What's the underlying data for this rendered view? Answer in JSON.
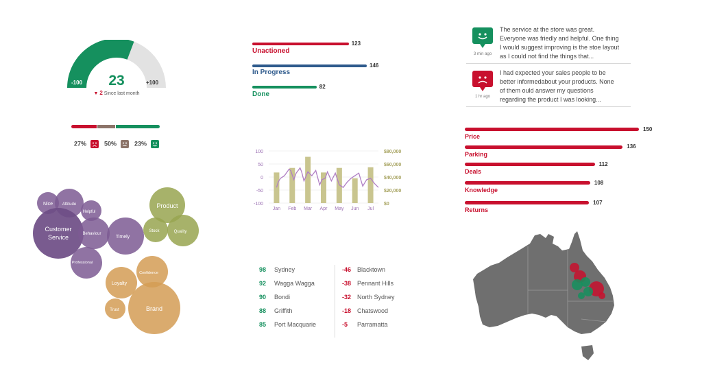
{
  "gauge": {
    "score": "23",
    "min_label": "-100",
    "max_label": "+100",
    "change_value": "2",
    "change_text": "Since last month",
    "value": 23,
    "range": [
      -100,
      100
    ]
  },
  "sentiment": {
    "items": [
      {
        "pct": "27%",
        "kind": "negative",
        "share": 27
      },
      {
        "pct": "50%",
        "kind": "neutral",
        "share": 50
      },
      {
        "pct": "23%",
        "kind": "positive",
        "share": 23
      }
    ]
  },
  "status": {
    "items": [
      {
        "label": "Unactioned",
        "value": "123",
        "count": 123,
        "color": "#c8102e"
      },
      {
        "label": "In Progress",
        "value": "146",
        "count": 146,
        "color": "#2e5a8c"
      },
      {
        "label": "Done",
        "value": "82",
        "count": 82,
        "color": "#15905e"
      }
    ]
  },
  "comments": [
    {
      "sentiment": "positive",
      "time": "3 min ago",
      "text": "The service at the store was great. Everyone was friedly and helpful. One thing I would suggest improving is the stoe layout as I could not find the things that..."
    },
    {
      "sentiment": "negative",
      "time": "1 hr ago",
      "text": "I had expected your sales people to be better informedabout your products. None of them ould answer my questions regarding the product I was looking..."
    }
  ],
  "topics": {
    "items": [
      {
        "label": "Price",
        "value": "150",
        "count": 150
      },
      {
        "label": "Parking",
        "value": "136",
        "count": 136
      },
      {
        "label": "Deals",
        "value": "112",
        "count": 112
      },
      {
        "label": "Knowledge",
        "value": "108",
        "count": 108
      },
      {
        "label": "Returns",
        "value": "107",
        "count": 107
      }
    ]
  },
  "locations": {
    "top": [
      {
        "score": "98",
        "name": "Sydney"
      },
      {
        "score": "92",
        "name": "Wagga Wagga"
      },
      {
        "score": "90",
        "name": "Bondi"
      },
      {
        "score": "88",
        "name": "Griffith"
      },
      {
        "score": "85",
        "name": "Port Macquarie"
      }
    ],
    "bottom": [
      {
        "score": "-46",
        "name": "Blacktown"
      },
      {
        "score": "-38",
        "name": "Pennant Hills"
      },
      {
        "score": "-32",
        "name": "North Sydney"
      },
      {
        "score": "-18",
        "name": "Chatswood"
      },
      {
        "score": "-5",
        "name": "Parramatta"
      }
    ]
  },
  "bubbles": {
    "items": [
      {
        "label": "Nice",
        "group": "service"
      },
      {
        "label": "Attitude",
        "group": "service"
      },
      {
        "label": "Helpful",
        "group": "service"
      },
      {
        "label": "Customer Service",
        "group": "service"
      },
      {
        "label": "Behaviour",
        "group": "service"
      },
      {
        "label": "Timely",
        "group": "service"
      },
      {
        "label": "Professional",
        "group": "service"
      },
      {
        "label": "Product",
        "group": "product"
      },
      {
        "label": "Stock",
        "group": "product"
      },
      {
        "label": "Quality",
        "group": "product"
      },
      {
        "label": "Confidence",
        "group": "brand"
      },
      {
        "label": "Loyalty",
        "group": "brand"
      },
      {
        "label": "Trust",
        "group": "brand"
      },
      {
        "label": "Brand",
        "group": "brand"
      }
    ],
    "colors": {
      "service": "#7d5a93",
      "product": "#98a550",
      "brand": "#d49c55"
    }
  },
  "map": {
    "land_color": "#6f6f6f",
    "marker_colors": {
      "positive": "#15905e",
      "negative": "#c8102e"
    }
  },
  "chart_data": {
    "type": "bar+line",
    "categories": [
      "Jan",
      "Feb",
      "Mar",
      "Apr",
      "May",
      "Jun",
      "Jul"
    ],
    "left_ticks": [
      "100",
      "50",
      "0",
      "-50",
      "-100"
    ],
    "right_ticks": [
      "$80,000",
      "$60,000",
      "$40,000",
      "$20,000",
      "$0"
    ],
    "ylim_left": [
      -100,
      100
    ],
    "ylim_right": [
      0,
      80000
    ],
    "bars": {
      "name": "",
      "color": "#c9c58f",
      "values": [
        47000,
        54000,
        71000,
        47000,
        54000,
        38000,
        55000
      ]
    },
    "line": {
      "name": "",
      "color": "#b07fc4",
      "x": [
        0.0,
        0.1,
        0.25,
        0.5,
        0.8,
        0.9,
        1.1,
        1.25,
        1.5,
        1.6,
        1.75,
        2.0,
        2.25,
        2.5,
        2.75,
        2.9,
        3.1,
        3.25,
        3.5,
        3.75,
        4.0,
        4.25,
        4.5,
        4.75,
        5.0,
        5.25,
        5.5,
        5.75,
        6.0,
        6.25,
        6.5
      ],
      "values": [
        -40,
        -20,
        -5,
        5,
        30,
        25,
        -10,
        15,
        35,
        20,
        -15,
        20,
        5,
        25,
        -30,
        -10,
        -5,
        20,
        -15,
        15,
        -30,
        -40,
        -20,
        -5,
        5,
        15,
        -35,
        -10,
        -5,
        -25,
        -40
      ]
    }
  }
}
